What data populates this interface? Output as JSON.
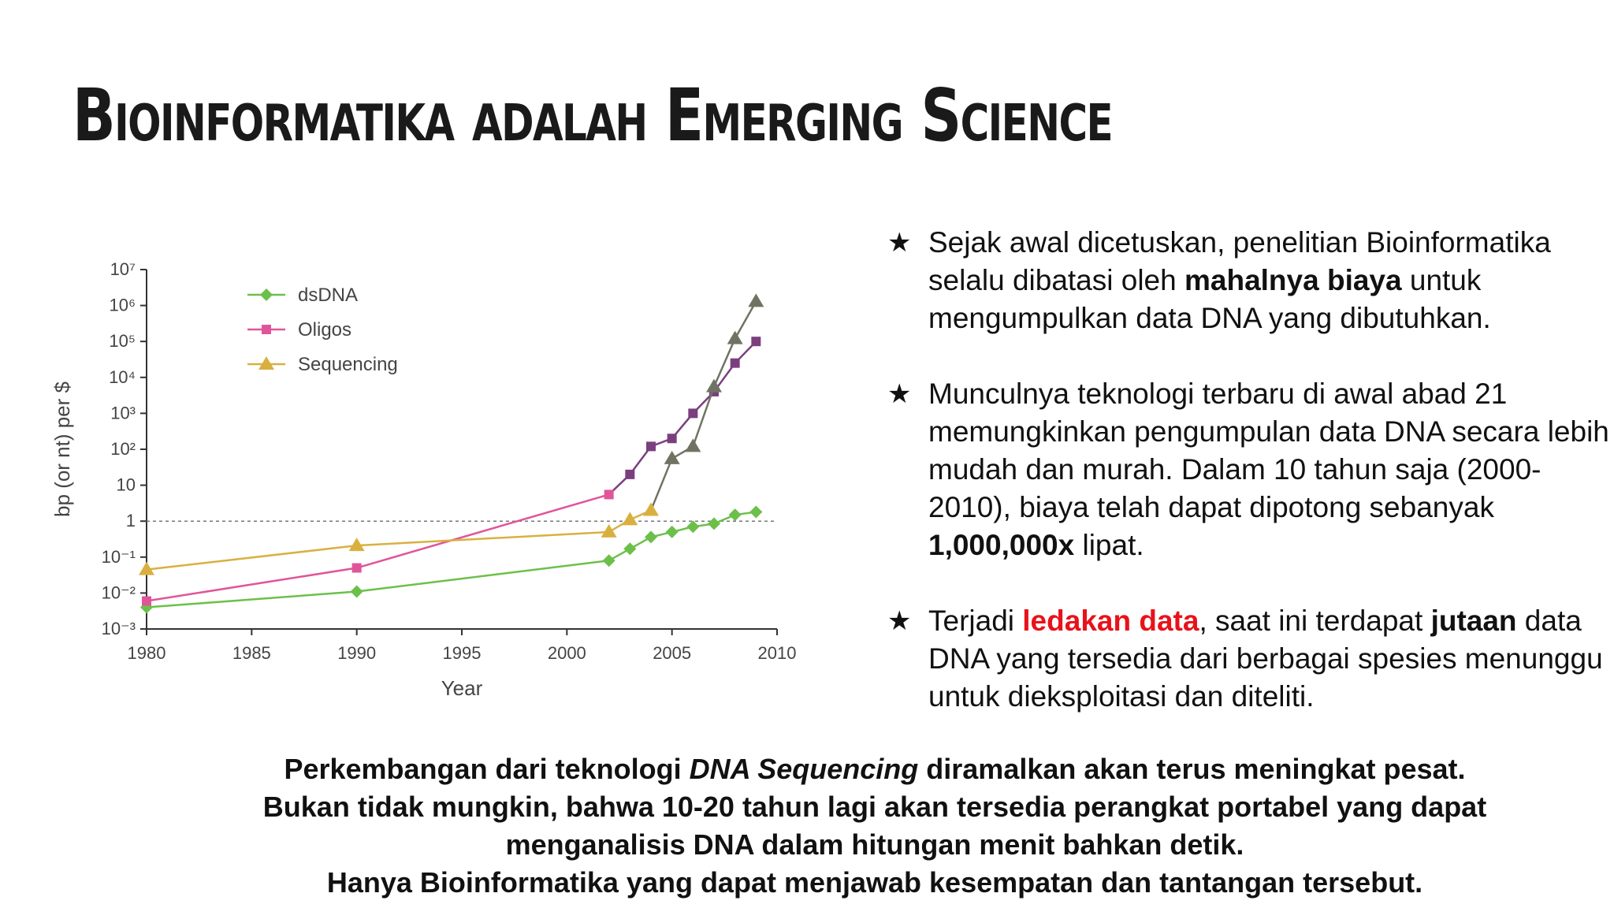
{
  "slide": {
    "title": "Bioinformatika adalah Emerging Science"
  },
  "bullets": [
    {
      "pre": "Sejak awal dicetuskan, penelitian Bioinformatika selalu dibatasi oleh ",
      "bold": "mahalnya biaya",
      "post": " untuk mengumpulkan data DNA yang dibutuhkan."
    },
    {
      "pre": "Munculnya teknologi terbaru di awal abad 21 memungkinkan pengumpulan data DNA secara lebih mudah dan murah. Dalam 10 tahun saja (2000-2010), biaya telah dapat dipotong sebanyak ",
      "bold": "1,000,000x",
      "post": " lipat."
    },
    {
      "pre": "Terjadi ",
      "red": "ledakan data",
      "mid": ", saat ini terdapat ",
      "bold": "jutaan",
      "post": " data DNA yang tersedia dari berbagai spesies menunggu untuk dieksploitasi dan diteliti."
    }
  ],
  "footer": {
    "line1_pre": "Perkembangan dari teknologi ",
    "line1_italic": "DNA Sequencing",
    "line1_post": " diramalkan akan terus meningkat pesat.",
    "line2": "Bukan tidak mungkin, bahwa 10-20 tahun lagi akan tersedia perangkat portabel yang dapat",
    "line3": "menganalisis DNA dalam hitungan menit bahkan detik.",
    "line4": "Hanya Bioinformatika yang dapat menjawab kesempatan dan tantangan tersebut."
  },
  "colors": {
    "dsDNA": "#6cc04a",
    "Oligos": "#e0559a",
    "Sequencing": "#d9b040",
    "oligos_late": "#7b3f7e",
    "sequencing_late": "#6f7462",
    "red_text": "#e8121a"
  },
  "chart_data": {
    "type": "line",
    "xlabel": "Year",
    "ylabel": "bp (or nt) per $",
    "xlim": [
      1980,
      2010
    ],
    "ylim": [
      0.001,
      10000000
    ],
    "yscale": "log",
    "x_ticks": [
      1980,
      1985,
      1990,
      1995,
      2000,
      2005,
      2010
    ],
    "y_ticks": [
      {
        "value": 10000000,
        "label": "10⁷"
      },
      {
        "value": 1000000,
        "label": "10⁶"
      },
      {
        "value": 100000,
        "label": "10⁵"
      },
      {
        "value": 10000,
        "label": "10⁴"
      },
      {
        "value": 1000,
        "label": "10³"
      },
      {
        "value": 100,
        "label": "10²"
      },
      {
        "value": 10,
        "label": "10"
      },
      {
        "value": 1,
        "label": "1"
      },
      {
        "value": 0.1,
        "label": "10⁻¹"
      },
      {
        "value": 0.01,
        "label": "10⁻²"
      },
      {
        "value": 0.001,
        "label": "10⁻³"
      }
    ],
    "reference_line": 1,
    "legend_position": "top-left",
    "series": [
      {
        "name": "dsDNA",
        "marker": "diamond",
        "color": "#6cc04a",
        "x": [
          1980,
          1990,
          2002,
          2003,
          2004,
          2005,
          2006,
          2007,
          2008,
          2009
        ],
        "y": [
          0.004,
          0.011,
          0.08,
          0.17,
          0.36,
          0.5,
          0.7,
          0.85,
          1.5,
          1.8
        ]
      },
      {
        "name": "Oligos",
        "marker": "square",
        "color": "#e0559a",
        "x": [
          1980,
          1990,
          2002
        ],
        "y": [
          0.006,
          0.05,
          5.5
        ],
        "continuation": {
          "color": "#7b3f7e",
          "x": [
            2002,
            2003,
            2004,
            2005,
            2006,
            2007,
            2008,
            2009
          ],
          "y": [
            5.5,
            20,
            120,
            200,
            1000,
            4000,
            25000,
            100000
          ]
        }
      },
      {
        "name": "Sequencing",
        "marker": "triangle",
        "color": "#d9b040",
        "x": [
          1980,
          1990,
          2002,
          2003,
          2004
        ],
        "y": [
          0.045,
          0.21,
          0.5,
          1.1,
          2
        ],
        "continuation": {
          "color": "#6f7462",
          "x": [
            2004,
            2005,
            2006,
            2007,
            2008,
            2009
          ],
          "y": [
            2,
            55,
            120,
            5500,
            120000,
            1300000
          ]
        }
      }
    ]
  }
}
